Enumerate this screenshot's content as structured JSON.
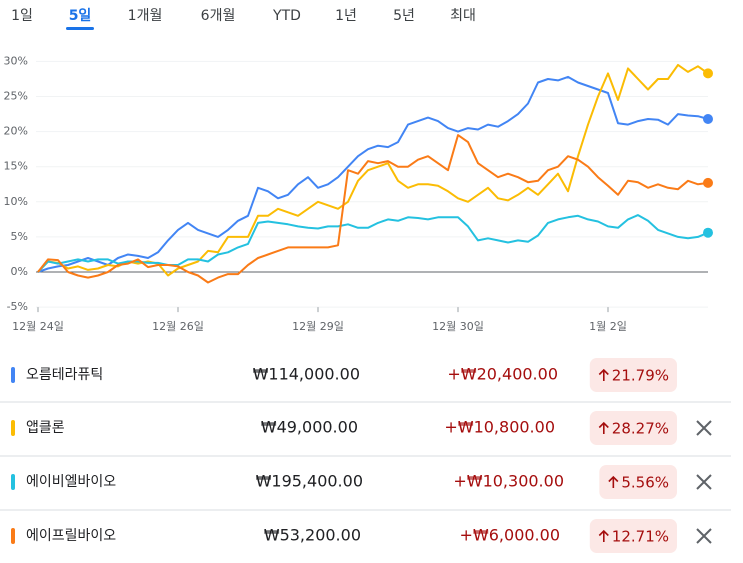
{
  "tabs": [
    "1일",
    "5일",
    "1개월",
    "6개월",
    "YTD",
    "1년",
    "5년",
    "최대"
  ],
  "selected_tab": 1,
  "chart_data": {
    "type": "line",
    "categories": [
      "12월 24일",
      null,
      null,
      null,
      null,
      null,
      null,
      null,
      null,
      null,
      null,
      null,
      null,
      null,
      "12월 26일",
      null,
      null,
      null,
      null,
      null,
      null,
      null,
      null,
      null,
      null,
      null,
      null,
      null,
      "12월 29일",
      null,
      null,
      null,
      null,
      null,
      null,
      null,
      null,
      null,
      null,
      null,
      null,
      null,
      "12월 30일",
      null,
      null,
      null,
      null,
      null,
      null,
      null,
      null,
      null,
      null,
      null,
      null,
      null,
      null,
      "1월 2일",
      null,
      null,
      null,
      null,
      null,
      null,
      null,
      null,
      null,
      null
    ],
    "ylim": [
      -5,
      31
    ],
    "yticks": [
      {
        "value": 30,
        "label": "30%"
      },
      {
        "value": 25,
        "label": "25%"
      },
      {
        "value": 20,
        "label": "20%"
      },
      {
        "value": 15,
        "label": "15%"
      },
      {
        "value": 10,
        "label": "10%"
      },
      {
        "value": 5,
        "label": "5%"
      },
      {
        "value": 0,
        "label": "0%"
      },
      {
        "value": -5,
        "label": "-5%"
      }
    ],
    "grid": true,
    "series": [
      {
        "name": "오름테라퓨틱",
        "color": "#4285f4",
        "values": [
          0,
          0.5,
          0.8,
          1,
          1.5,
          2,
          1.5,
          1,
          2,
          2.5,
          2.3,
          2,
          2.8,
          4.5,
          6,
          7,
          6,
          5.5,
          5,
          6,
          7.3,
          8,
          12,
          11.5,
          10.5,
          11,
          12.5,
          13.5,
          12,
          12.5,
          13.5,
          15,
          16.5,
          17.5,
          18,
          17.8,
          18.5,
          21,
          21.5,
          22,
          21.5,
          20.5,
          20,
          20.5,
          20.3,
          21,
          20.7,
          21.5,
          22.5,
          24,
          27,
          27.5,
          27.3,
          27.8,
          27,
          26.5,
          26,
          25.5,
          21.2,
          21,
          21.5,
          21.8,
          21.7,
          21,
          22.5,
          22.3,
          22.2,
          21.8
        ]
      },
      {
        "name": "앱클론",
        "color": "#fbbc04",
        "values": [
          0,
          1.5,
          1.3,
          0.5,
          0.8,
          0.3,
          0.5,
          1,
          0.8,
          1.5,
          1.2,
          1.5,
          1.2,
          -0.5,
          0.5,
          1,
          1.5,
          3,
          2.8,
          5,
          5,
          5,
          8,
          8,
          9,
          8.5,
          8,
          9,
          10,
          9.5,
          9,
          10,
          13,
          14.5,
          15,
          15.5,
          13,
          12,
          12.5,
          12.5,
          12.3,
          11.5,
          10.5,
          10,
          11,
          12,
          10.5,
          10.2,
          11,
          12,
          11,
          12.5,
          14,
          11.5,
          16.5,
          21,
          25,
          28.3,
          24.5,
          29,
          27.5,
          26,
          27.5,
          27.5,
          29.5,
          28.5,
          29.3,
          28.3
        ]
      },
      {
        "name": "에이비엘바이오",
        "color": "#24c1e0",
        "values": [
          0,
          1.5,
          1.2,
          1.5,
          1.8,
          1.5,
          1.8,
          1.8,
          1.2,
          1.5,
          1.5,
          1.3,
          1.3,
          1,
          1,
          1.8,
          1.8,
          1.5,
          2.5,
          2.8,
          3.5,
          4,
          7,
          7.2,
          7,
          6.8,
          6.5,
          6.3,
          6.2,
          6.5,
          6.5,
          6.8,
          6.3,
          6.3,
          7,
          7.5,
          7.3,
          7.8,
          7.7,
          7.5,
          7.8,
          7.8,
          7.8,
          6.5,
          4.5,
          4.8,
          4.5,
          4.2,
          4.5,
          4.3,
          5.2,
          7,
          7.5,
          7.8,
          8,
          7.5,
          7.2,
          6.5,
          6.3,
          7.5,
          8.1,
          7.3,
          6,
          5.5,
          5,
          4.8,
          5,
          5.6
        ]
      },
      {
        "name": "에이프릴바이오",
        "color": "#fa7b17",
        "values": [
          0,
          1.8,
          1.7,
          0,
          -0.5,
          -0.8,
          -0.5,
          0,
          1,
          1.2,
          1.8,
          0.7,
          1,
          1,
          0.8,
          0,
          -0.5,
          -1.5,
          -0.8,
          -0.3,
          -0.3,
          1,
          2,
          2.5,
          3,
          3.5,
          3.5,
          3.5,
          3.5,
          3.5,
          3.8,
          14.5,
          14,
          15.8,
          15.5,
          15.8,
          15,
          15,
          16,
          16.5,
          15.5,
          14.5,
          19.5,
          18.5,
          15.5,
          14.5,
          13.5,
          14,
          13.5,
          12.8,
          13,
          14.5,
          15,
          16.5,
          16,
          15,
          13.5,
          12.3,
          11,
          13,
          12.8,
          12,
          12.5,
          12,
          11.8,
          13,
          12.5,
          12.7
        ]
      }
    ]
  },
  "rows": [
    {
      "price": "₩114,000.00",
      "change": "+₩20,400.00",
      "percent": "21.79%"
    },
    {
      "price": "₩49,000.00",
      "change": "+₩10,800.00",
      "percent": "28.27%"
    },
    {
      "price": "₩195,400.00",
      "change": "+₩10,300.00",
      "percent": "5.56%"
    },
    {
      "price": "₩53,200.00",
      "change": "+₩6,000.00",
      "percent": "12.71%"
    }
  ]
}
